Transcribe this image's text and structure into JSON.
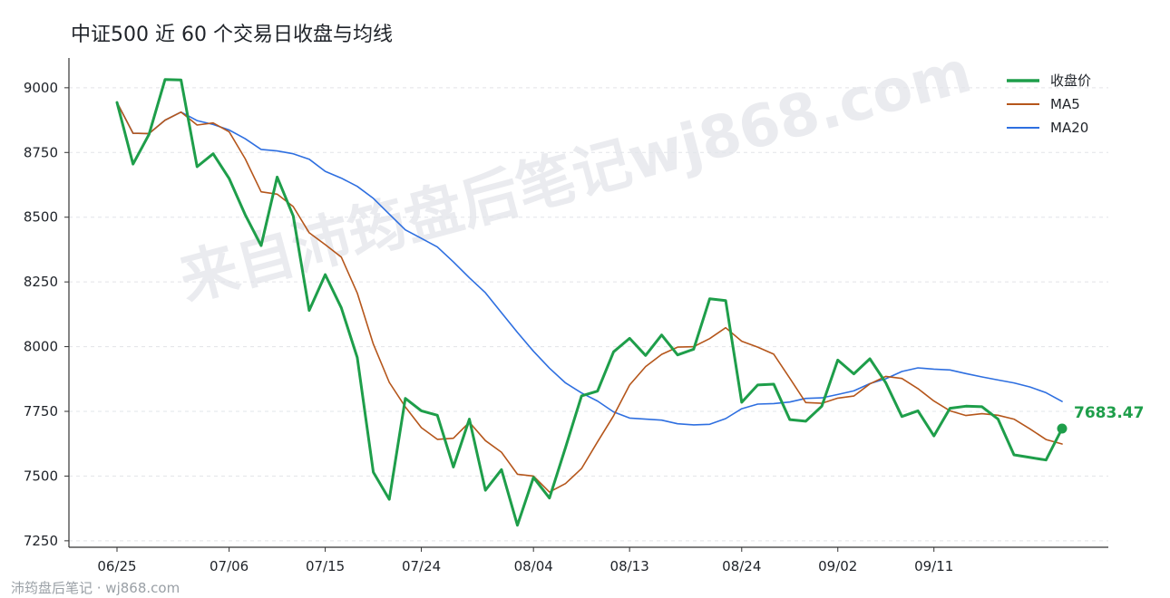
{
  "chart_data": {
    "type": "line",
    "title": "中证500 近 60 个交易日收盘与均线",
    "x_ticks": [
      "06/25",
      "07/06",
      "07/15",
      "07/24",
      "08/04",
      "08/13",
      "08/24",
      "09/02",
      "09/11"
    ],
    "y_ticks": [
      7250,
      7500,
      7750,
      8000,
      8250,
      8500,
      8750,
      9000
    ],
    "ylim": [
      7225,
      9115
    ],
    "grid": "horizontal-dashed",
    "legend_position": "top-right",
    "series": [
      {
        "name": "收盘价",
        "color": "#1e9e4a",
        "values": [
          8943,
          8705,
          8820,
          9032,
          9030,
          8695,
          8745,
          8650,
          8510,
          8390,
          8655,
          8505,
          8140,
          8278,
          8150,
          7958,
          7515,
          7410,
          7800,
          7752,
          7735,
          7535,
          7720,
          7445,
          7525,
          7310,
          7495,
          7415,
          7610,
          7810,
          7828,
          7980,
          8032,
          7966,
          8045,
          7968,
          7990,
          8185,
          8178,
          7785,
          7852,
          7855,
          7718,
          7712,
          7770,
          7948,
          7895,
          7953,
          7860,
          7730,
          7752,
          7655,
          7762,
          7770,
          7768,
          7720,
          7582,
          7572,
          7562,
          7683.47
        ]
      },
      {
        "name": "MA5",
        "color": "#b5561b",
        "values": [
          8943,
          8824,
          8823,
          8875,
          8906,
          8856,
          8864,
          8830,
          8726,
          8598,
          8589,
          8541,
          8440,
          8394,
          8346,
          8207,
          8010,
          7862,
          7767,
          7687,
          7642,
          7646,
          7708,
          7637,
          7592,
          7507,
          7500,
          7438,
          7471,
          7529,
          7632,
          7733,
          7852,
          7923,
          7970,
          7998,
          8000,
          8031,
          8073,
          8021,
          7998,
          7971,
          7878,
          7784,
          7781,
          7801,
          7809,
          7856,
          7885,
          7877,
          7838,
          7790,
          7752,
          7734,
          7741,
          7735,
          7720,
          7682,
          7641,
          7624
        ]
      },
      {
        "name": "MA20",
        "color": "#2e6fe0",
        "values": [
          8943,
          8824,
          8823,
          8875,
          8906,
          8873,
          8858,
          8837,
          8803,
          8762,
          8756,
          8745,
          8724,
          8677,
          8651,
          8619,
          8573,
          8512,
          8451,
          8418,
          8385,
          8327,
          8266,
          8208,
          8131,
          8055,
          7982,
          7917,
          7860,
          7821,
          7790,
          7748,
          7724,
          7720,
          7716,
          7702,
          7698,
          7700,
          7722,
          7760,
          7778,
          7780,
          7786,
          7800,
          7802,
          7815,
          7829,
          7857,
          7876,
          7904,
          7918,
          7913,
          7910,
          7896,
          7883,
          7871,
          7860,
          7844,
          7822,
          7788
        ]
      }
    ],
    "x_index": {
      "tick_positions": [
        0,
        7,
        13,
        19,
        26,
        32,
        39,
        45,
        51
      ]
    },
    "end_label": {
      "text": "7683.47",
      "value": 7683.47,
      "color": "#1e9e4a"
    },
    "watermark": "来自沛筠盘后笔记wj868.com",
    "footer": "沛筠盘后笔记 · wj868.com"
  }
}
